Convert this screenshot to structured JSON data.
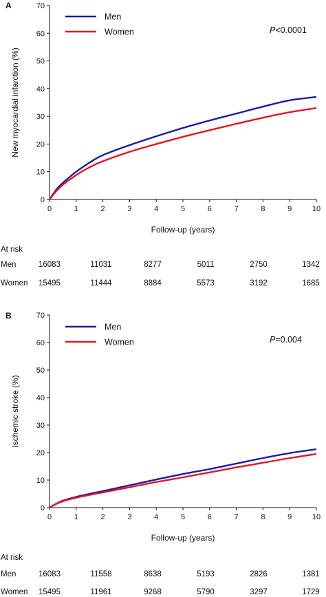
{
  "colors": {
    "men": "#1a1aa6",
    "women": "#e8141c",
    "axis": "#111111"
  },
  "chart_data": [
    {
      "type": "line",
      "panel_label": "A",
      "ylabel": "New myocardial infarction (%)",
      "xlabel": "Follow-up (years)",
      "xlim": [
        0,
        10
      ],
      "ylim": [
        0,
        70
      ],
      "x_ticks": [
        "0",
        "1",
        "2",
        "3",
        "4",
        "5",
        "6",
        "7",
        "8",
        "9",
        "10"
      ],
      "y_ticks": [
        "0",
        "10",
        "20",
        "30",
        "40",
        "50",
        "60",
        "70"
      ],
      "legend": [
        "Men",
        "Women"
      ],
      "legend_position": "top-left",
      "p_text": "<0.0001",
      "p_label": "P",
      "x": [
        0,
        0.25,
        0.5,
        1,
        1.5,
        2,
        3,
        4,
        5,
        6,
        7,
        8,
        9,
        10
      ],
      "series": [
        {
          "name": "Men",
          "values": [
            0,
            3.5,
            6.0,
            10.0,
            13.3,
            16.0,
            19.6,
            22.8,
            25.8,
            28.5,
            31.0,
            33.5,
            35.8,
            37.0
          ]
        },
        {
          "name": "Women",
          "values": [
            0,
            3.0,
            5.3,
            8.8,
            11.6,
            13.8,
            17.2,
            20.0,
            22.6,
            25.0,
            27.3,
            29.5,
            31.5,
            33.0
          ]
        }
      ],
      "at_risk": {
        "title": "At risk",
        "rows": [
          {
            "label": "Men",
            "values": [
              "16083",
              "11031",
              "8277",
              "5011",
              "2750",
              "1342"
            ]
          },
          {
            "label": "Women",
            "values": [
              "15495",
              "11444",
              "8884",
              "5573",
              "3192",
              "1685"
            ]
          }
        ]
      }
    },
    {
      "type": "line",
      "panel_label": "B",
      "ylabel": "Ischemic stroke (%)",
      "xlabel": "Follow-up (years)",
      "xlim": [
        0,
        10
      ],
      "ylim": [
        0,
        70
      ],
      "x_ticks": [
        "0",
        "1",
        "2",
        "3",
        "4",
        "5",
        "6",
        "7",
        "8",
        "9",
        "10"
      ],
      "y_ticks": [
        "0",
        "10",
        "20",
        "30",
        "40",
        "50",
        "60",
        "70"
      ],
      "legend": [
        "Men",
        "Women"
      ],
      "legend_position": "top-left",
      "p_text": "=0.004",
      "p_label": "P",
      "x": [
        0,
        0.25,
        0.5,
        1,
        1.5,
        2,
        3,
        4,
        5,
        6,
        7,
        8,
        9,
        10
      ],
      "series": [
        {
          "name": "Men",
          "values": [
            0,
            1.4,
            2.5,
            3.9,
            5.0,
            6.0,
            8.1,
            10.2,
            12.2,
            14.0,
            16.0,
            18.0,
            19.8,
            21.2
          ]
        },
        {
          "name": "Women",
          "values": [
            0,
            1.3,
            2.3,
            3.6,
            4.6,
            5.5,
            7.4,
            9.3,
            11.0,
            12.8,
            14.6,
            16.3,
            18.0,
            19.5
          ]
        }
      ],
      "at_risk": {
        "title": "At risk",
        "rows": [
          {
            "label": "Men",
            "values": [
              "16083",
              "11558",
              "8638",
              "5193",
              "2826",
              "1381"
            ]
          },
          {
            "label": "Women",
            "values": [
              "15495",
              "11961",
              "9268",
              "5790",
              "3297",
              "1729"
            ]
          }
        ]
      }
    }
  ]
}
